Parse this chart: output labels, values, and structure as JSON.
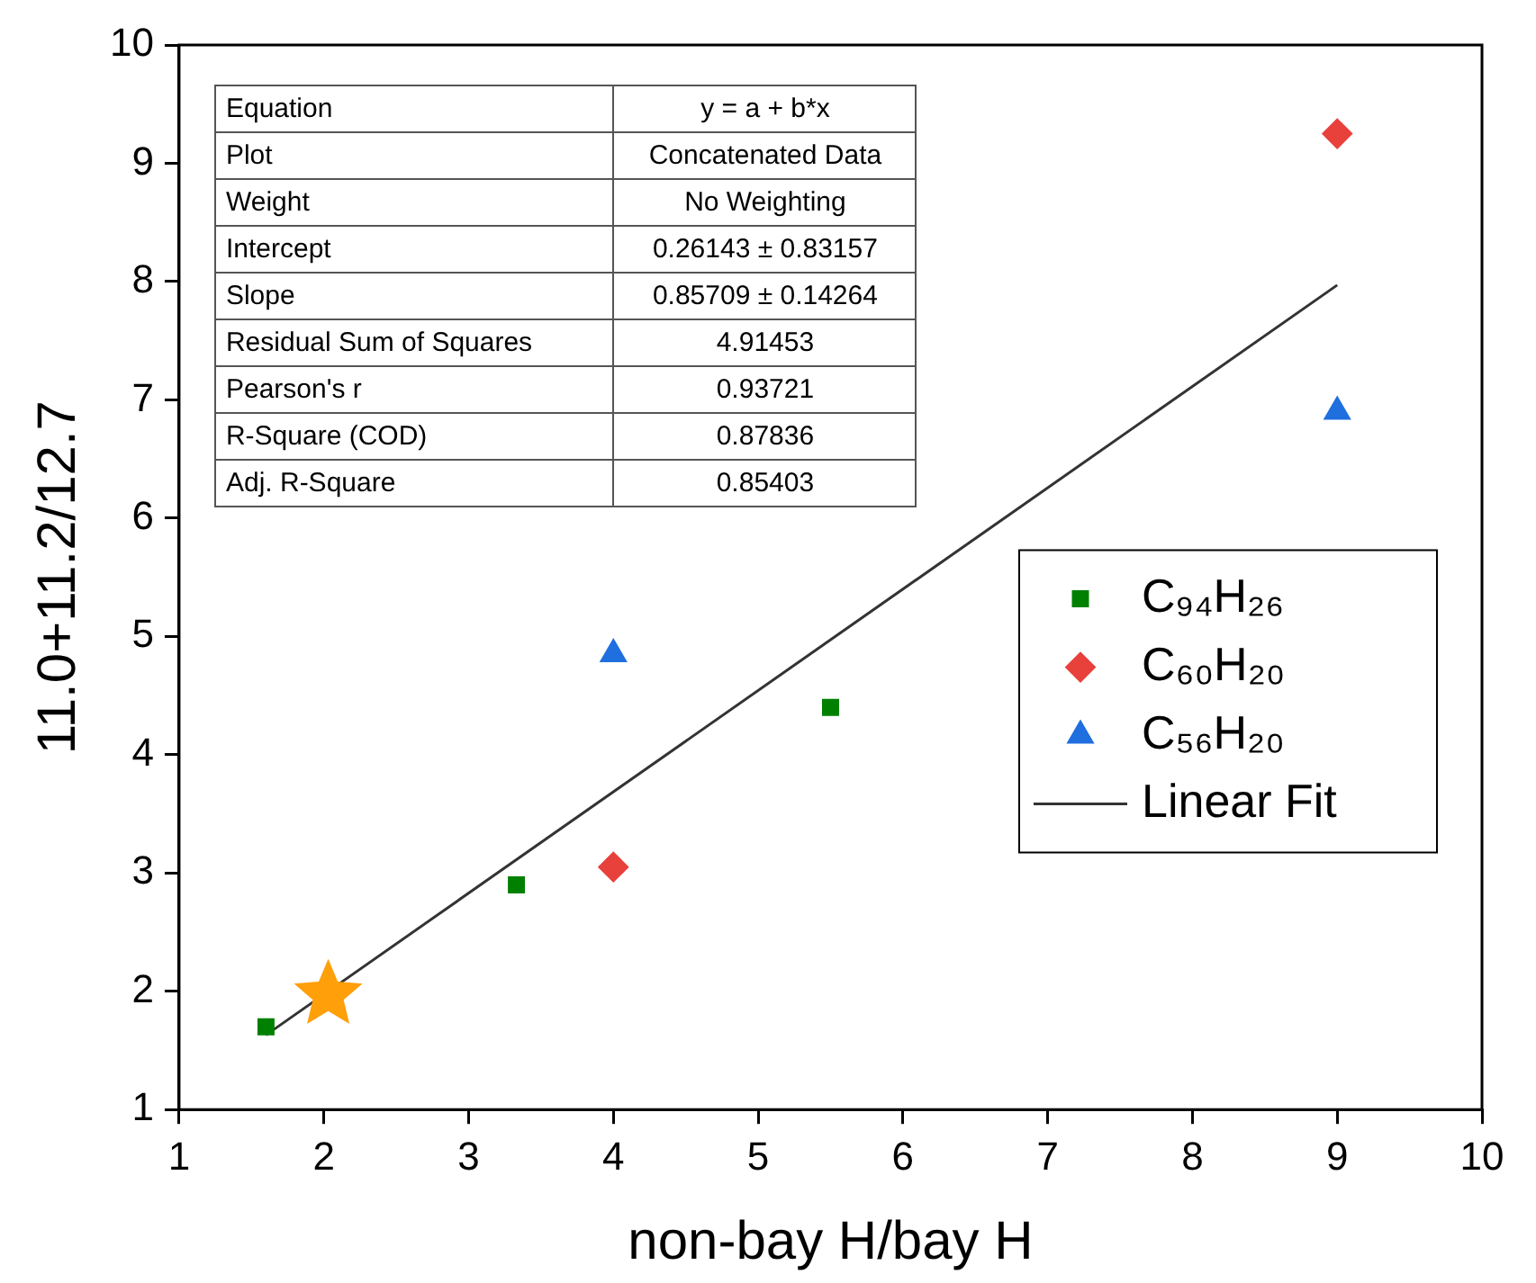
{
  "chart_data": {
    "type": "scatter",
    "xlabel": "non-bay H/bay H",
    "ylabel": "11.0+11.2/12.7",
    "xlim": [
      1,
      10
    ],
    "xticks": [
      1,
      2,
      3,
      4,
      5,
      6,
      7,
      8,
      9,
      10
    ],
    "ylim": [
      1,
      10
    ],
    "yticks": [
      1,
      2,
      3,
      4,
      5,
      6,
      7,
      8,
      9,
      10
    ],
    "grid": false,
    "legend": "right",
    "series": [
      {
        "name": "C₉₄H₂₆",
        "color": "#008000",
        "marker": "square",
        "x": [
          1.6,
          3.33,
          5.5
        ],
        "values": [
          1.7,
          2.9,
          4.4
        ]
      },
      {
        "name": "C₆₀H₂₀",
        "color": "#e8413c",
        "marker": "diamond",
        "x": [
          4,
          9
        ],
        "values": [
          3.05,
          9.25
        ]
      },
      {
        "name": "C₅₆H₂₀",
        "color": "#1f6fdf",
        "marker": "triangle",
        "x": [
          4,
          9
        ],
        "values": [
          4.85,
          6.9
        ]
      },
      {
        "type": "line",
        "name": "Linear Fit",
        "color": "#333333",
        "marker": "none",
        "x": [
          1.6,
          9
        ],
        "values": [
          1.63,
          7.97
        ]
      },
      {
        "color": "#ff9f0a",
        "marker": "star",
        "x": [
          2.03
        ],
        "values": [
          1.97
        ]
      }
    ],
    "annotations": [
      "Equation",
      "y = a + b*x",
      "Plot",
      "Concatenated Data",
      "Weight",
      "No Weighting",
      "Intercept",
      "0.26143 ± 0.83157",
      "Slope",
      "0.85709 ± 0.14264",
      "Residual Sum of Squares",
      "4.91453",
      "Pearson's r",
      "0.93721",
      "R-Square (COD)",
      "0.87836",
      "Adj. R-Square",
      "0.85403"
    ]
  }
}
